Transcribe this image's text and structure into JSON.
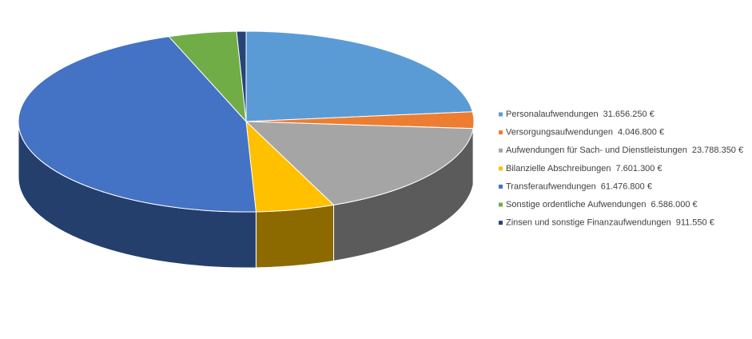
{
  "chart_data": {
    "type": "pie",
    "categories": [
      "Personalaufwendungen",
      "Versorgungsaufwendungen",
      "Aufwendungen für Sach- und Dienstleistungen",
      "Bilanzielle Abschreibungen",
      "Transferaufwendungen",
      "Sonstige ordentliche Aufwendungen",
      "Zinsen und sonstige Finanzaufwendungen"
    ],
    "values": [
      31656250,
      4046800,
      23788350,
      7601300,
      61476800,
      6586000,
      911550
    ],
    "value_labels": [
      "31.656.250 €",
      "4.046.800 €",
      "23.788.350 €",
      "7.601.300 €",
      "61.476.800 €",
      "6.586.000 €",
      "911.550 €"
    ],
    "colors": [
      "#5b9bd5",
      "#ed7d31",
      "#a5a5a5",
      "#ffc000",
      "#4472c4",
      "#70ad47",
      "#264478"
    ],
    "legend": "right"
  }
}
